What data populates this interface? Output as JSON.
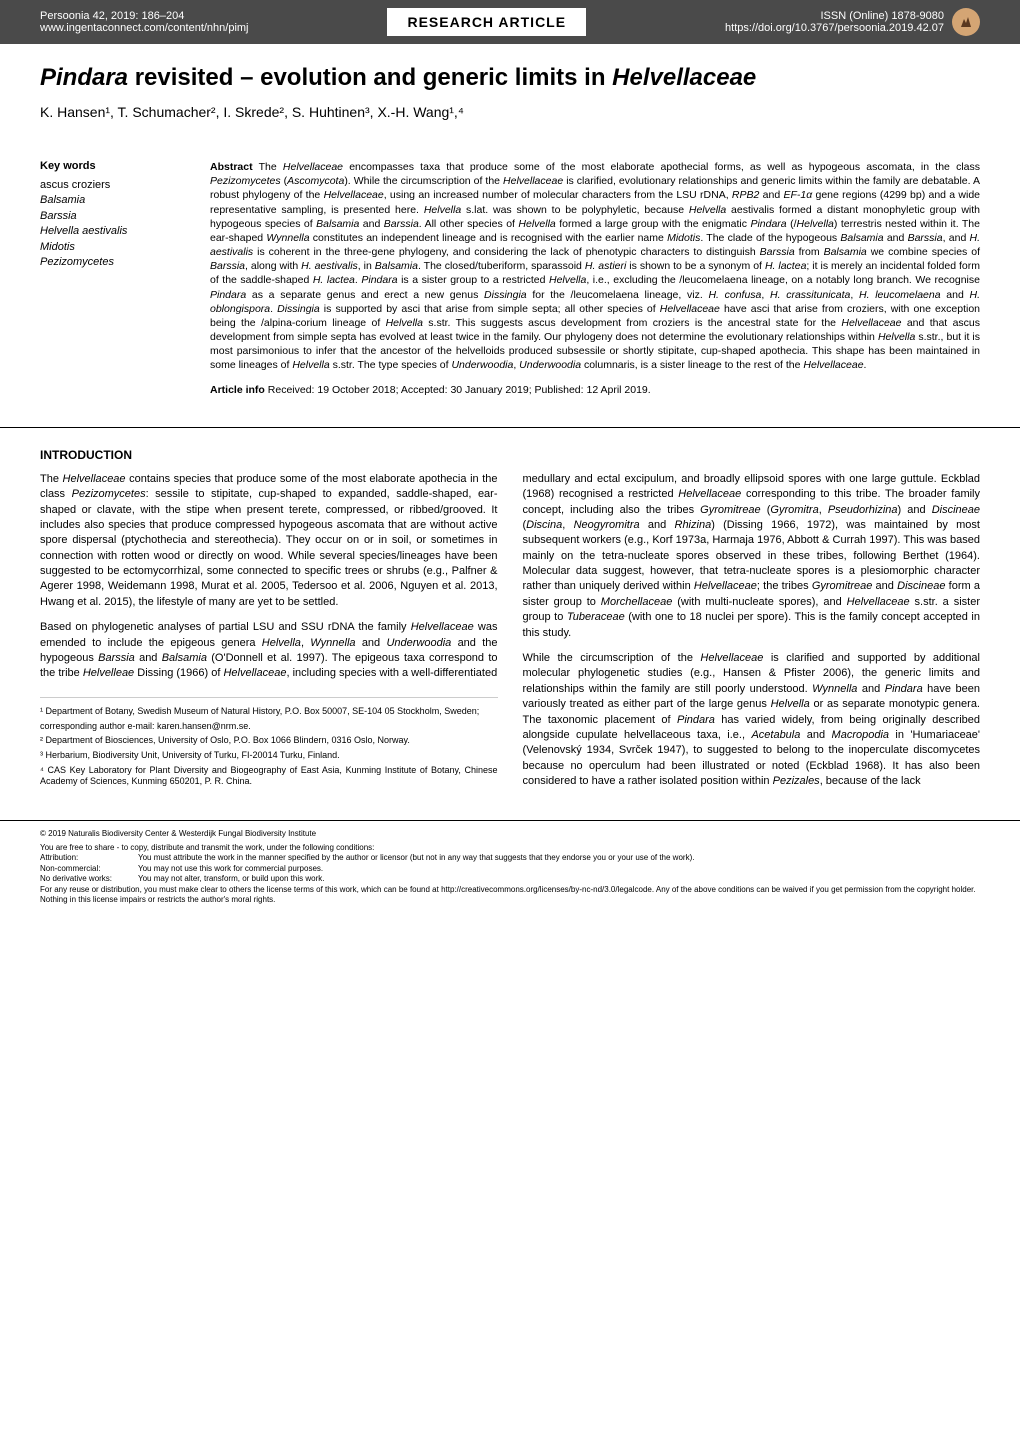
{
  "header": {
    "journal": "Persoonia 42, 2019: 186–204",
    "url": "www.ingentaconnect.com/content/nhn/pimj",
    "article_type": "RESEARCH ARTICLE",
    "issn": "ISSN (Online) 1878-9080",
    "doi": "https://doi.org/10.3767/persoonia.2019.42.07"
  },
  "title": "Pindara revisited – evolution and generic limits in Helvellaceae",
  "authors": "K. Hansen¹, T. Schumacher², I. Skrede², S. Huhtinen³, X.-H. Wang¹,⁴",
  "keywords": {
    "heading": "Key words",
    "items": [
      {
        "text": "ascus croziers",
        "italic": false
      },
      {
        "text": "Balsamia",
        "italic": true
      },
      {
        "text": "Barssia",
        "italic": true
      },
      {
        "text": "Helvella aestivalis",
        "italic": true
      },
      {
        "text": "Midotis",
        "italic": true
      },
      {
        "text": "Pezizomycetes",
        "italic": true
      }
    ]
  },
  "abstract": {
    "label": "Abstract",
    "text": "The Helvellaceae encompasses taxa that produce some of the most elaborate apothecial forms, as well as hypogeous ascomata, in the class Pezizomycetes (Ascomycota). While the circumscription of the Helvellaceae is clarified, evolutionary relationships and generic limits within the family are debatable. A robust phylogeny of the Helvellaceae, using an increased number of molecular characters from the LSU rDNA, RPB2 and EF-1α gene regions (4299 bp) and a wide representative sampling, is presented here. Helvella s.lat. was shown to be polyphyletic, because Helvella aestivalis formed a distant monophyletic group with hypogeous species of Balsamia and Barssia. All other species of Helvella formed a large group with the enigmatic Pindara (/Helvella) terrestris nested within it. The ear-shaped Wynnella constitutes an independent lineage and is recognised with the earlier name Midotis. The clade of the hypogeous Balsamia and Barssia, and H. aestivalis is coherent in the three-gene phylogeny, and considering the lack of phenotypic characters to distinguish Barssia from Balsamia we combine species of Barssia, along with H. aestivalis, in Balsamia. The closed/tuberiform, sparassoid H. astieri is shown to be a synonym of H. lactea; it is merely an incidental folded form of the saddle-shaped H. lactea. Pindara is a sister group to a restricted Helvella, i.e., excluding the /leucomelaena lineage, on a notably long branch. We recognise Pindara as a separate genus and erect a new genus Dissingia for the /leucomelaena lineage, viz. H. confusa, H. crassitunicata, H. leucomelaena and H. oblongispora. Dissingia is supported by asci that arise from simple septa; all other species of Helvellaceae have asci that arise from croziers, with one exception being the /alpina-corium lineage of Helvella s.str. This suggests ascus development from croziers is the ancestral state for the Helvellaceae and that ascus development from simple septa has evolved at least twice in the family. Our phylogeny does not determine the evolutionary relationships within Helvella s.str., but it is most parsimonious to infer that the ancestor of the helvelloids produced subsessile or shortly stipitate, cup-shaped apothecia. This shape has been maintained in some lineages of Helvella s.str. The type species of Underwoodia, Underwoodia columnaris, is a sister lineage to the rest of the Helvellaceae."
  },
  "article_info": {
    "label": "Article info",
    "text": "Received: 19 October 2018; Accepted: 30 January 2019; Published: 12 April 2019."
  },
  "introduction": {
    "heading": "INTRODUCTION",
    "col1_p1": "The Helvellaceae contains species that produce some of the most elaborate apothecia in the class Pezizomycetes: sessile to stipitate, cup-shaped to expanded, saddle-shaped, ear-shaped or clavate, with the stipe when present terete, compressed, or ribbed/grooved. It includes also species that produce compressed hypogeous ascomata that are without active spore dispersal (ptychothecia and stereothecia). They occur on or in soil, or sometimes in connection with rotten wood or directly on wood. While several species/lineages have been suggested to be ectomycorrhizal, some connected to specific trees or shrubs (e.g., Palfner & Agerer 1998, Weidemann 1998, Murat et al. 2005, Tedersoo et al. 2006, Nguyen et al. 2013, Hwang et al. 2015), the lifestyle of many are yet to be settled.",
    "col1_p2": "Based on phylogenetic analyses of partial LSU and SSU rDNA the family Helvellaceae was emended to include the epigeous genera Helvella, Wynnella and Underwoodia and the hypogeous Barssia and Balsamia (O'Donnell et al. 1997). The epigeous taxa correspond to the tribe Helvelleae Dissing (1966) of Helvellaceae, including species with a well-differentiated",
    "col2_p1": "medullary and ectal excipulum, and broadly ellipsoid spores with one large guttule. Eckblad (1968) recognised a restricted Helvellaceae corresponding to this tribe. The broader family concept, including also the tribes Gyromitreae (Gyromitra, Pseudorhizina) and Discineae (Discina, Neogyromitra and Rhizina) (Dissing 1966, 1972), was maintained by most subsequent workers (e.g., Korf 1973a, Harmaja 1976, Abbott & Currah 1997). This was based mainly on the tetra-nucleate spores observed in these tribes, following Berthet (1964). Molecular data suggest, however, that tetra-nucleate spores is a plesiomorphic character rather than uniquely derived within Helvellaceae; the tribes Gyromitreae and Discineae form a sister group to Morchellaceae (with multi-nucleate spores), and Helvellaceae s.str. a sister group to Tuberaceae (with one to 18 nuclei per spore). This is the family concept accepted in this study.",
    "col2_p2": "While the circumscription of the Helvellaceae is clarified and supported by additional molecular phylogenetic studies (e.g., Hansen & Pfister 2006), the generic limits and relationships within the family are still poorly understood. Wynnella and Pindara have been variously treated as either part of the large genus Helvella or as separate monotypic genera. The taxonomic placement of Pindara has varied widely, from being originally described alongside cupulate helvellaceous taxa, i.e., Acetabula and Macropodia in 'Humariaceae' (Velenovský 1934, Svrček 1947), to suggested to belong to the inoperculate discomycetes because no operculum had been illustrated or noted (Eckblad 1968). It has also been considered to have a rather isolated position within Pezizales, because of the lack"
  },
  "affiliations": [
    "¹ Department of Botany, Swedish Museum of Natural History, P.O. Box 50007, SE-104 05 Stockholm, Sweden;",
    "   corresponding author e-mail: karen.hansen@nrm.se.",
    "² Department of Biosciences, University of Oslo, P.O. Box 1066 Blindern, 0316 Oslo, Norway.",
    "³ Herbarium, Biodiversity Unit, University of Turku, FI-20014 Turku, Finland.",
    "⁴ CAS Key Laboratory for Plant Diversity and Biogeography of East Asia, Kunming Institute of Botany, Chinese Academy of Sciences, Kunming 650201, P. R. China."
  ],
  "footer": {
    "copyright": "© 2019   Naturalis Biodiversity Center & Westerdijk Fungal Biodiversity Institute",
    "share_intro": "You are free to share - to copy, distribute and transmit the work, under the following conditions:",
    "rows": [
      {
        "label": "Attribution:",
        "text": "You must attribute the work in the manner specified by the author or licensor (but not in any way that suggests that they endorse you or your use of the work)."
      },
      {
        "label": "Non-commercial:",
        "text": "You may not use this work for commercial purposes."
      },
      {
        "label": "No derivative works:",
        "text": "You may not alter, transform, or build upon this work."
      }
    ],
    "reuse": "For any reuse or distribution, you must make clear to others the license terms of this work, which can be found at http://creativecommons.org/licenses/by-nc-nd/3.0/legalcode. Any of the above conditions can be waived if you get permission from the copyright holder. Nothing in this license impairs or restricts the author's moral rights."
  }
}
